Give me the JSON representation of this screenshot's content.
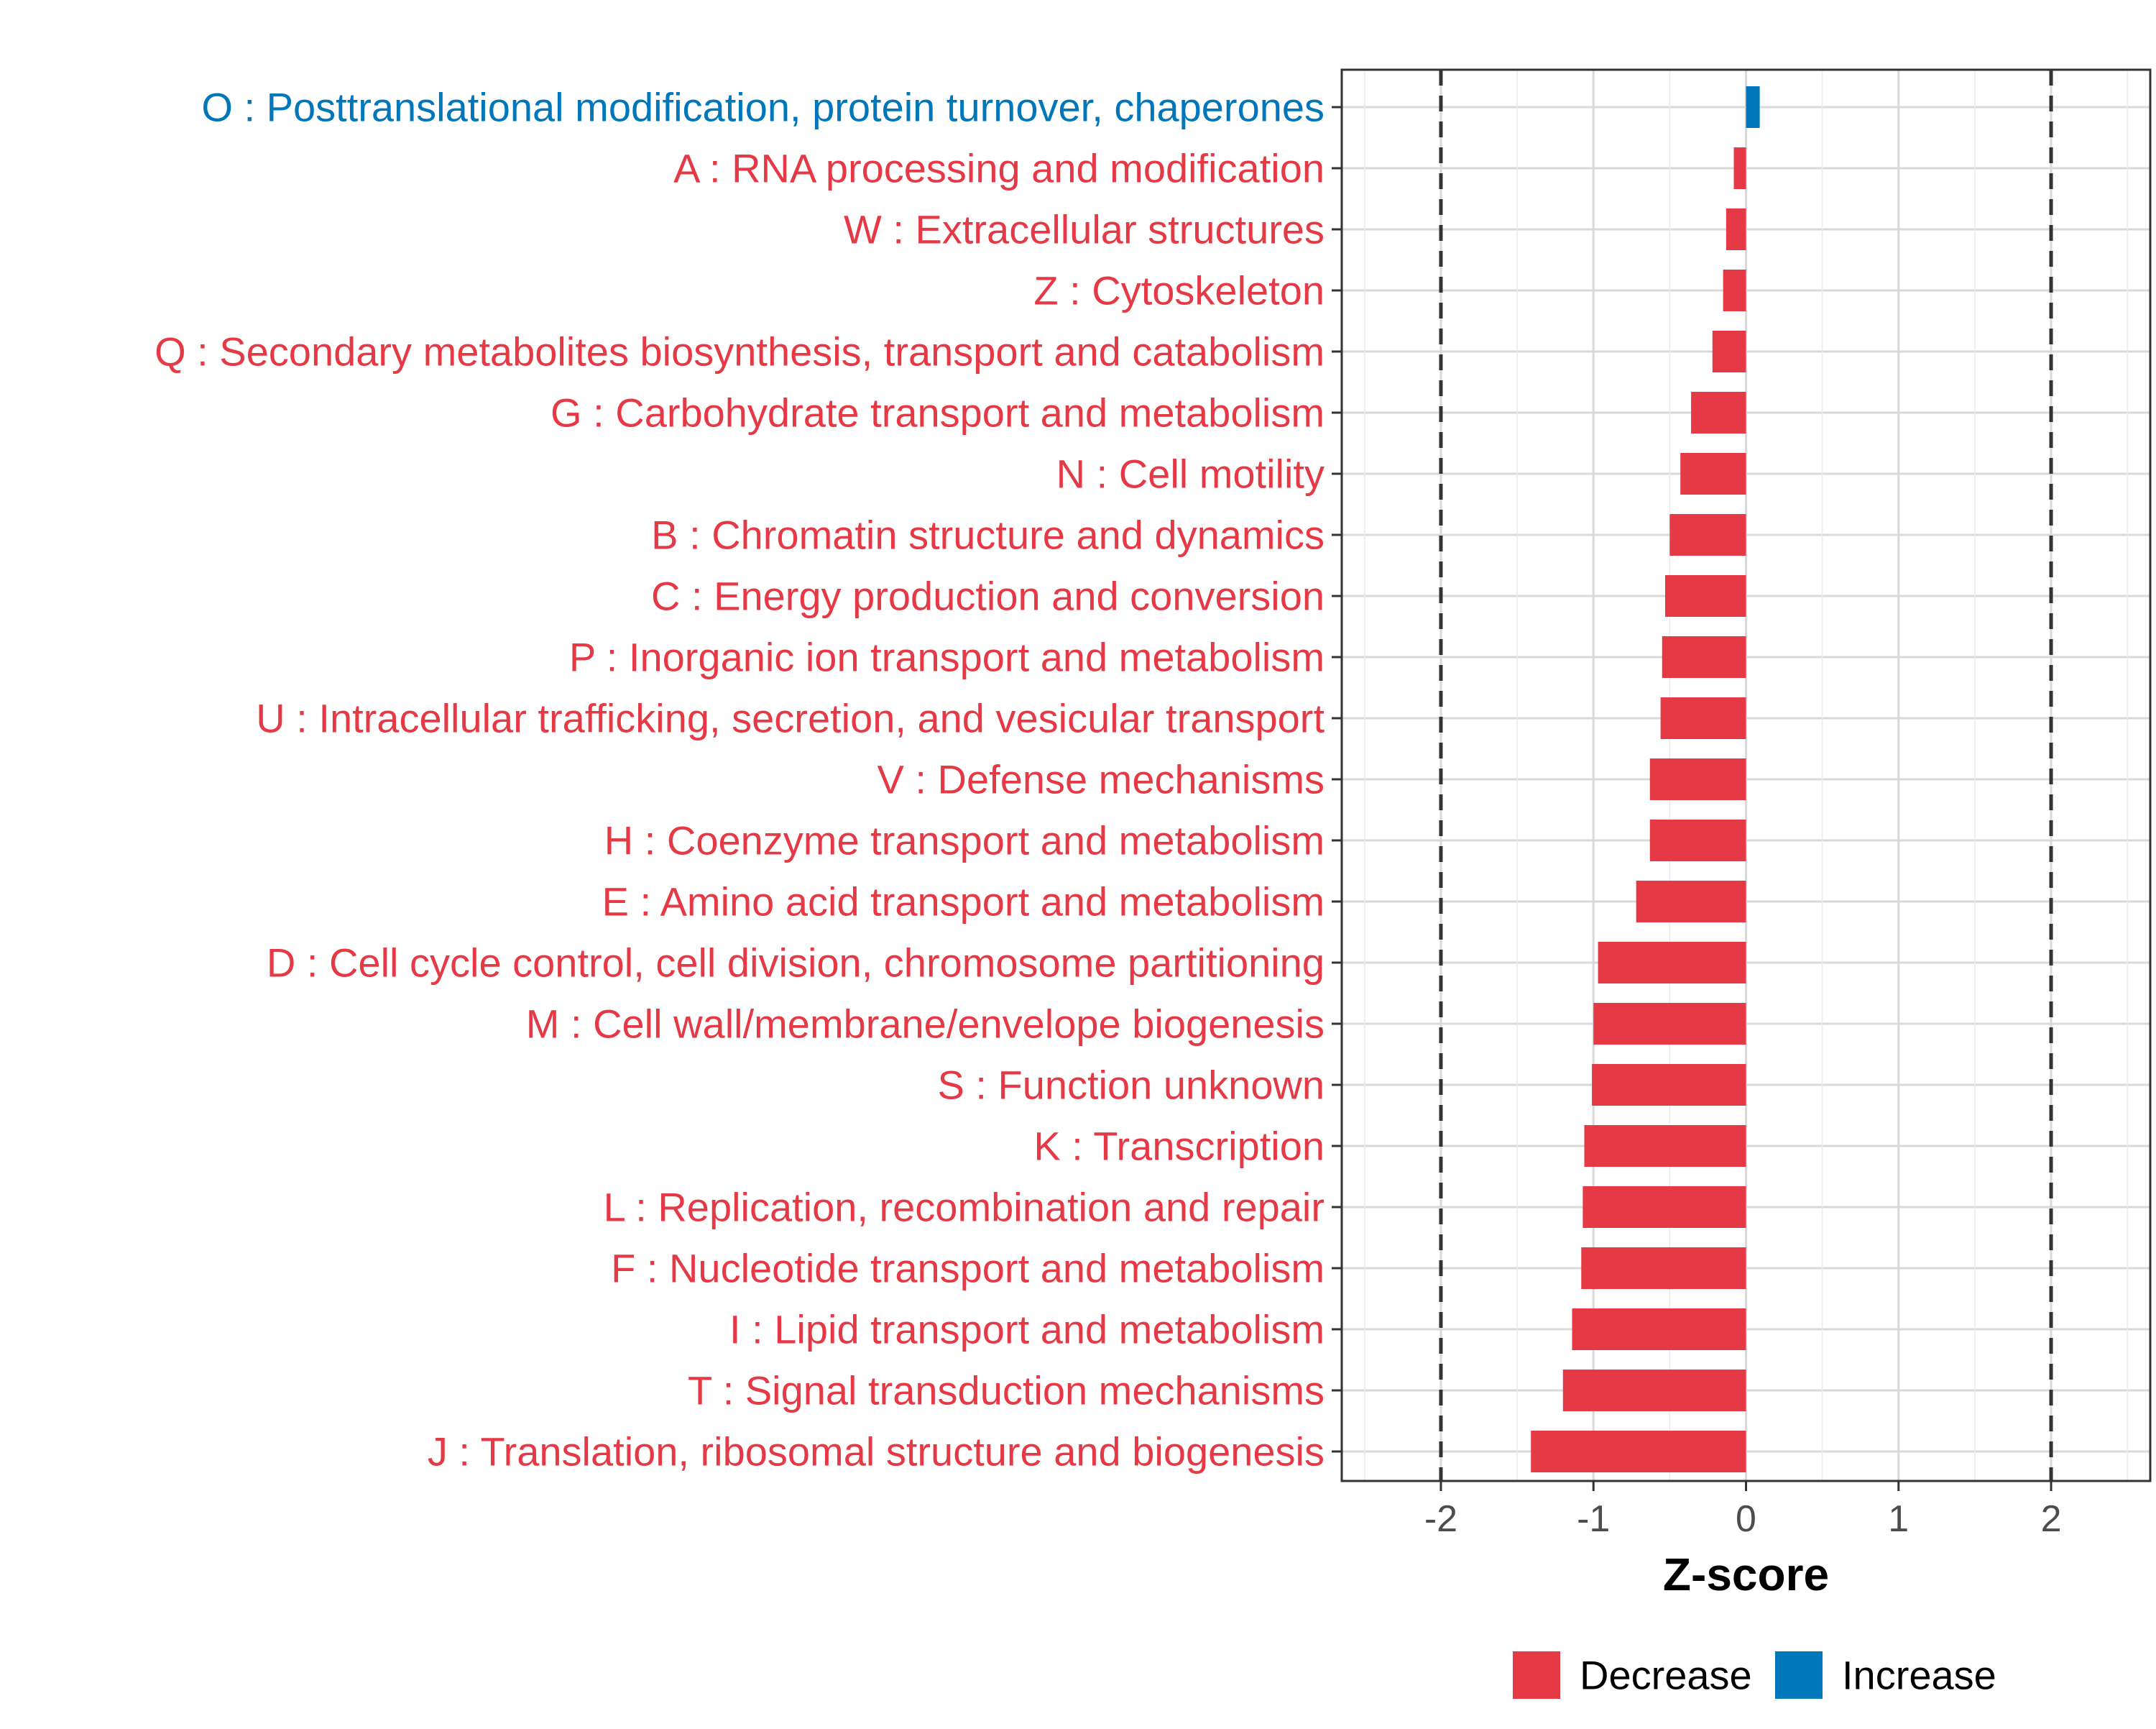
{
  "chart_data": {
    "type": "bar",
    "orientation": "horizontal",
    "title": "",
    "xlabel": "Z-score",
    "ylabel": "",
    "xlim": [
      -2.65,
      2.65
    ],
    "xticks": [
      -2,
      -1,
      0,
      1,
      2
    ],
    "xtick_labels": [
      "-2",
      "-1",
      "0",
      "1",
      "2"
    ],
    "reference_lines": [
      -2,
      2
    ],
    "grid": true,
    "categories": [
      "O : Posttranslational modification, protein turnover, chaperones",
      "A : RNA processing and modification",
      "W : Extracellular structures",
      "Z : Cytoskeleton",
      "Q : Secondary metabolites biosynthesis, transport and catabolism",
      "G : Carbohydrate transport and metabolism",
      "N : Cell motility",
      "B : Chromatin structure and dynamics",
      "C : Energy production and conversion",
      "P : Inorganic ion transport and metabolism",
      "U : Intracellular trafficking, secretion, and vesicular transport",
      "V : Defense mechanisms",
      "H : Coenzyme transport and metabolism",
      "E : Amino acid transport and metabolism",
      "D : Cell cycle control, cell division, chromosome partitioning",
      "M : Cell wall/membrane/envelope biogenesis",
      "S : Function unknown",
      "K : Transcription",
      "L : Replication, recombination and repair",
      "F : Nucleotide transport and metabolism",
      "I : Lipid transport and metabolism",
      "T : Signal transduction mechanisms",
      "J : Translation, ribosomal structure and biogenesis"
    ],
    "values": [
      0.09,
      -0.08,
      -0.13,
      -0.15,
      -0.22,
      -0.36,
      -0.43,
      -0.5,
      -0.53,
      -0.55,
      -0.56,
      -0.63,
      -0.63,
      -0.72,
      -0.97,
      -1.0,
      -1.01,
      -1.06,
      -1.07,
      -1.08,
      -1.14,
      -1.2,
      -1.41
    ],
    "groups": [
      "Increase",
      "Decrease",
      "Decrease",
      "Decrease",
      "Decrease",
      "Decrease",
      "Decrease",
      "Decrease",
      "Decrease",
      "Decrease",
      "Decrease",
      "Decrease",
      "Decrease",
      "Decrease",
      "Decrease",
      "Decrease",
      "Decrease",
      "Decrease",
      "Decrease",
      "Decrease",
      "Decrease",
      "Decrease",
      "Decrease"
    ],
    "legend": {
      "position": "bottom",
      "items": [
        {
          "label": "Decrease",
          "color": "#e63946"
        },
        {
          "label": "Increase",
          "color": "#0077bb"
        }
      ]
    },
    "colors": {
      "Decrease": "#e63946",
      "Increase": "#0077bb"
    }
  }
}
